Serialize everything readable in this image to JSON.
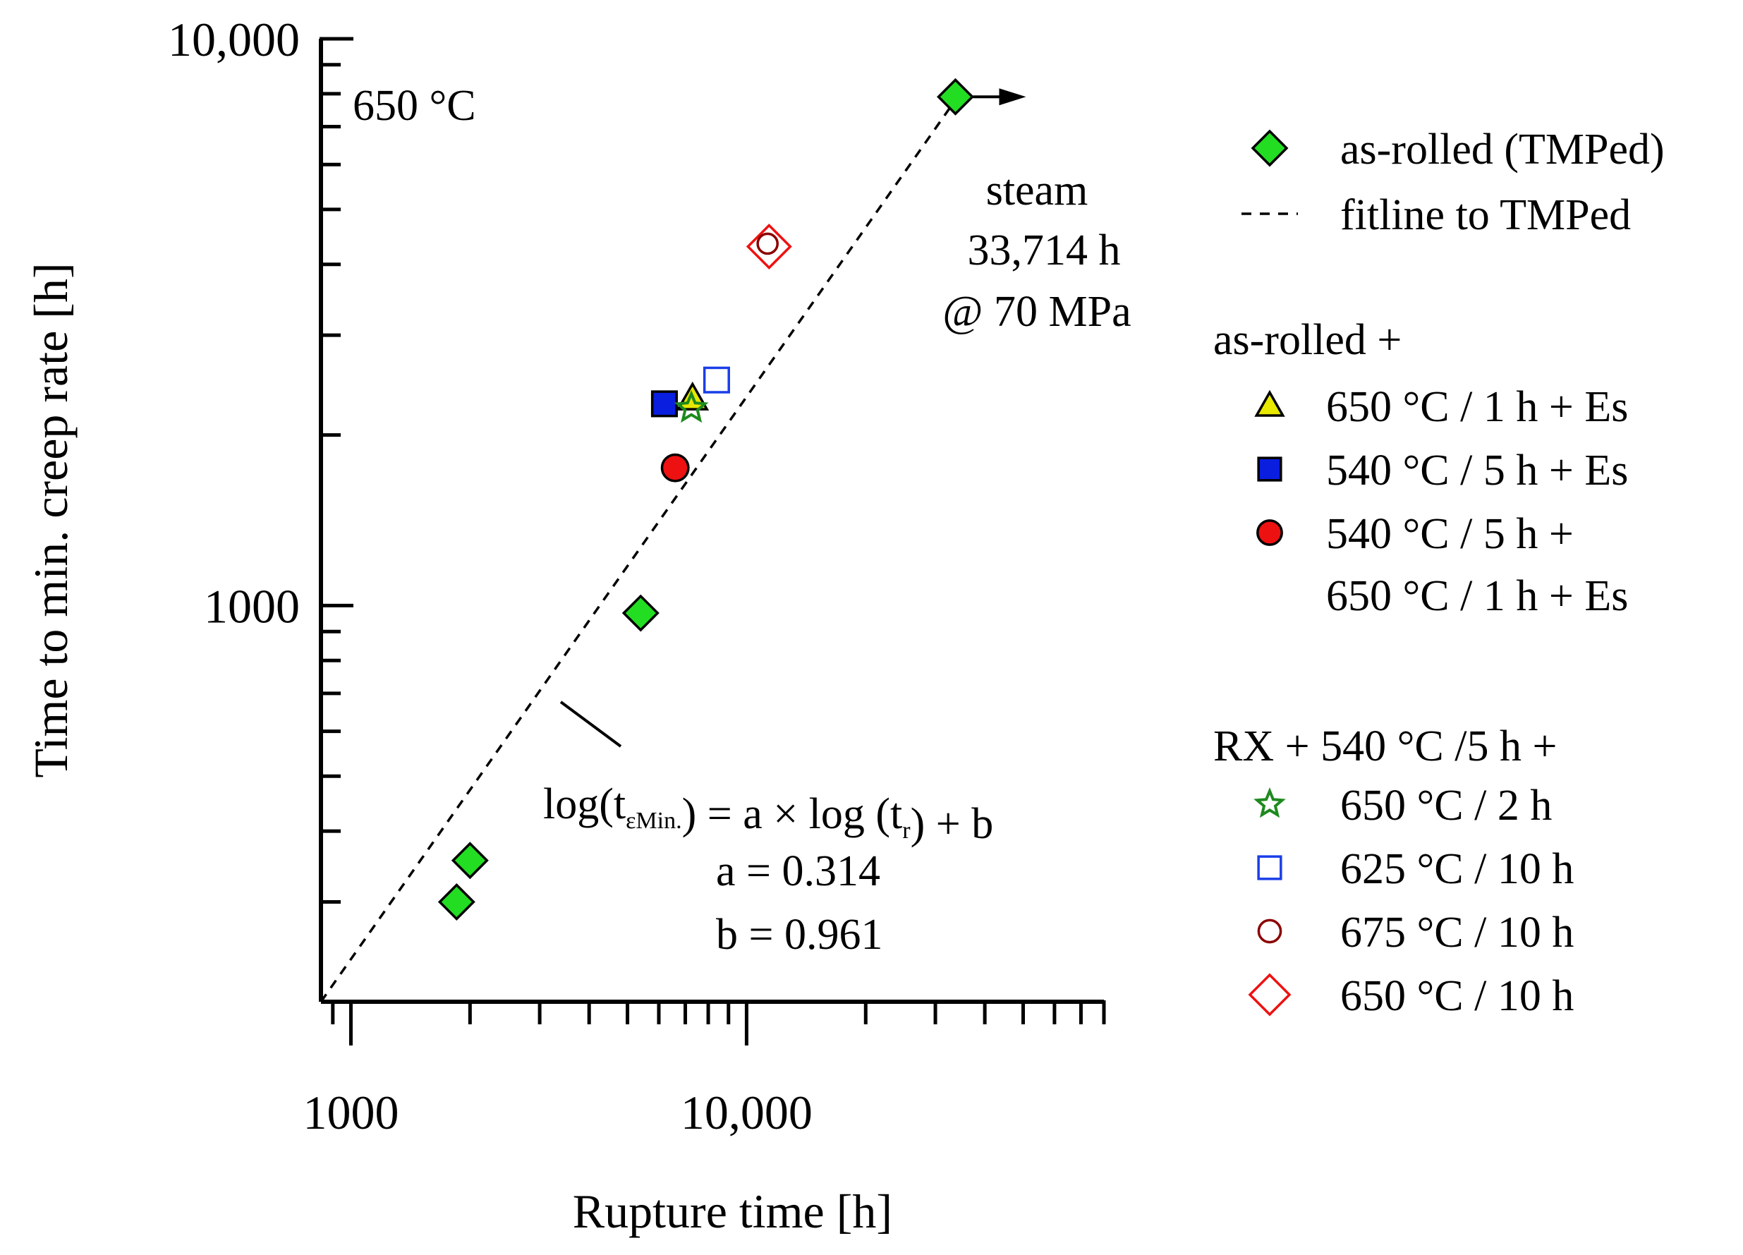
{
  "chart_data": {
    "type": "scatter",
    "xscale": "log",
    "yscale": "log",
    "xlim": [
      840,
      80000
    ],
    "ylim": [
      200,
      10000
    ],
    "xlabel": "Rupture time [h]",
    "ylabel": "Time to min. creep rate [h]",
    "x_ticks": [
      {
        "value": 1000,
        "label": "1000"
      },
      {
        "value": 10000,
        "label": "10,000"
      }
    ],
    "y_ticks": [
      {
        "value": 1000,
        "label": "1000"
      },
      {
        "value": 10000,
        "label": "10,000"
      }
    ],
    "temperature_label": "650 °C",
    "series": [
      {
        "name": "as-rolled (TMPed)",
        "marker": "diamond",
        "fill": "#22dd22",
        "stroke": "#000000",
        "points": [
          [
            1850,
            300
          ],
          [
            2000,
            355
          ],
          [
            5400,
            970
          ],
          [
            33714,
            7900
          ]
        ]
      },
      {
        "name": "650 °C / 1 h + Es",
        "marker": "triangle",
        "fill": "#e8e800",
        "stroke": "#000000",
        "points": [
          [
            7300,
            2320
          ]
        ]
      },
      {
        "name": "540 °C / 5 h + Es",
        "marker": "square",
        "fill": "#0a1ee0",
        "stroke": "#000000",
        "points": [
          [
            6200,
            2270
          ]
        ]
      },
      {
        "name": "540 °C / 5 h + 650 °C / 1 h + Es",
        "marker": "circle",
        "fill": "#ee1111",
        "stroke": "#000000",
        "points": [
          [
            6600,
            1750
          ]
        ]
      },
      {
        "name": "650 °C / 2 h",
        "marker": "star",
        "fill": "none",
        "stroke": "#1e8a1e",
        "points": [
          [
            7250,
            2230
          ]
        ]
      },
      {
        "name": "625 °C / 10 h",
        "marker": "square",
        "fill": "none",
        "stroke": "#1a3ee8",
        "points": [
          [
            8400,
            2500
          ]
        ]
      },
      {
        "name": "675 °C / 10 h",
        "marker": "circle",
        "fill": "none",
        "stroke": "#8b0000",
        "points": [
          [
            11300,
            4350
          ]
        ]
      },
      {
        "name": "650 °C / 10 h",
        "marker": "diamond",
        "fill": "none",
        "stroke": "#ee1111",
        "points": [
          [
            11400,
            4300
          ]
        ]
      }
    ],
    "fitline": {
      "name": "fitline to TMPed",
      "style": "dashed",
      "from": [
        840,
        200
      ],
      "to": [
        33714,
        7800
      ],
      "equation_prefix": "log(t",
      "equation_sub1": "εMin.",
      "equation_mid": ")  = a × log (t",
      "equation_sub2": "r",
      "equation_suffix": ") + b",
      "a_text": "a = 0.314",
      "b_text": "b = 0.961"
    },
    "annotation": {
      "line1": "steam",
      "line2": "33,714 h",
      "line3": "@ 70 MPa"
    },
    "legend": {
      "placement": "right",
      "entries": [
        {
          "label": "as-rolled (TMPed)",
          "marker": "diamond",
          "fill": "#22dd22",
          "stroke": "#000000"
        },
        {
          "label": "fitline to TMPed",
          "marker": "dash",
          "fill": "none",
          "stroke": "#000000"
        }
      ],
      "group1_title": "as-rolled +",
      "group1": [
        {
          "label": "650 °C / 1 h + Es",
          "marker": "triangle",
          "fill": "#e8e800",
          "stroke": "#000000"
        },
        {
          "label": "540 °C / 5 h + Es",
          "marker": "square",
          "fill": "#0a1ee0",
          "stroke": "#000000"
        },
        {
          "label": "540 °C / 5 h +",
          "label2": "650 °C / 1 h + Es",
          "marker": "circle",
          "fill": "#ee1111",
          "stroke": "#000000"
        }
      ],
      "group2_title": "RX + 540 °C /5 h +",
      "group2": [
        {
          "label": "650 °C / 2 h",
          "marker": "star",
          "fill": "none",
          "stroke": "#1e8a1e"
        },
        {
          "label": "625 °C / 10 h",
          "marker": "square",
          "fill": "none",
          "stroke": "#1a3ee8"
        },
        {
          "label": "675 °C / 10 h",
          "marker": "circle",
          "fill": "none",
          "stroke": "#8b0000"
        },
        {
          "label": "650 °C / 10 h",
          "marker": "diamond",
          "fill": "none",
          "stroke": "#ee1111"
        }
      ]
    }
  }
}
